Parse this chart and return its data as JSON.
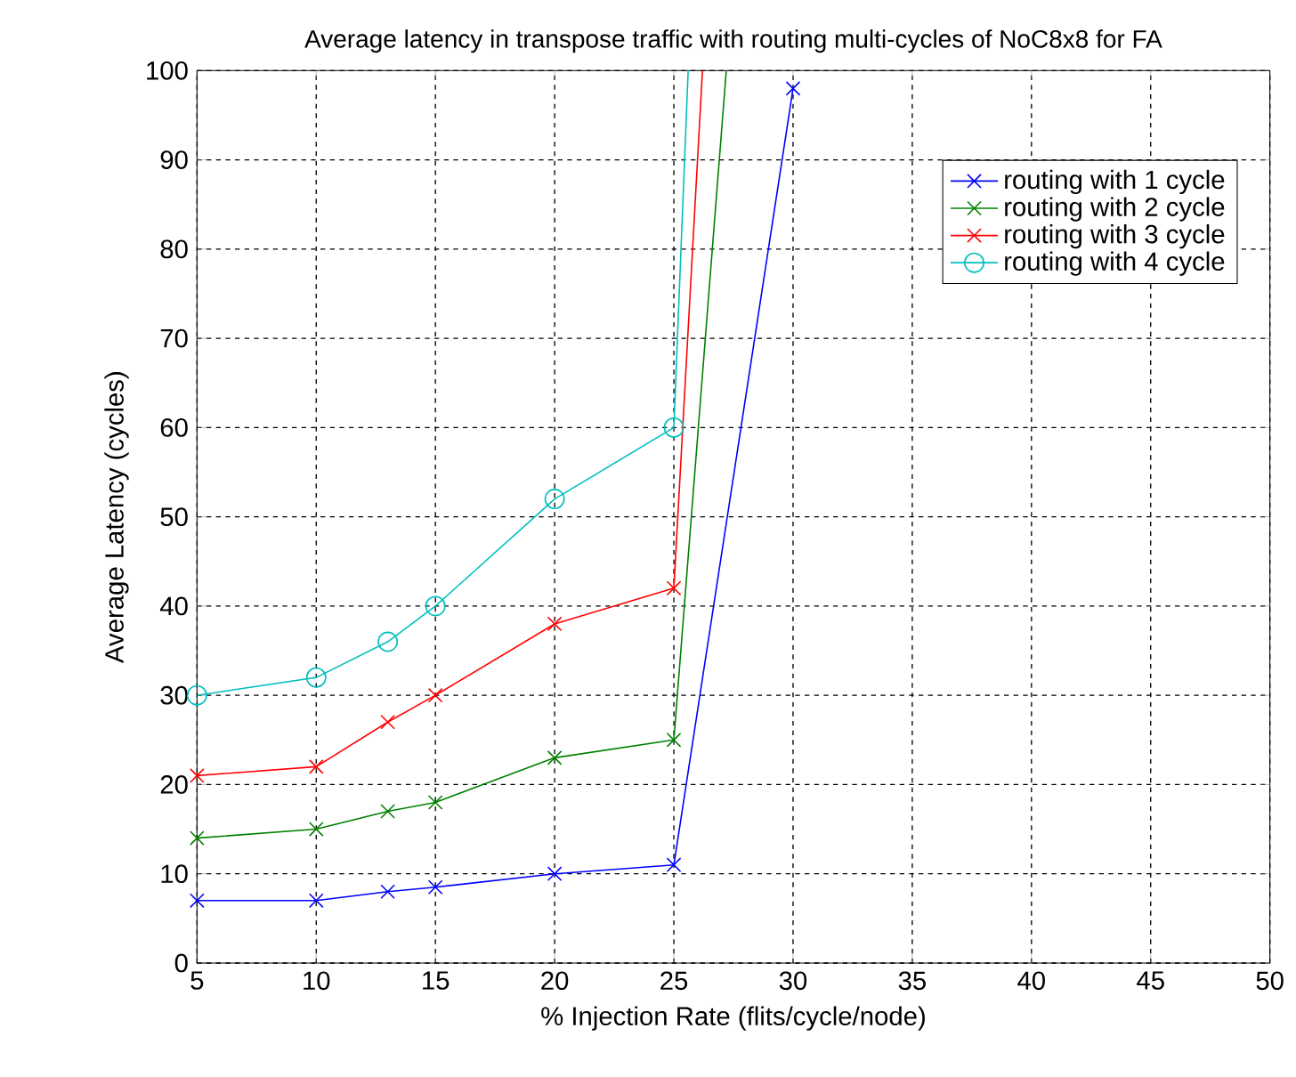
{
  "chart_data": {
    "type": "line",
    "title": "Average latency in transpose traffic with routing multi-cycles of NoC8x8 for FA",
    "xlabel": "% Injection Rate (flits/cycle/node)",
    "ylabel": "Average Latency (cycles)",
    "xlim": [
      5,
      50
    ],
    "ylim": [
      0,
      100
    ],
    "xticks": [
      5,
      10,
      15,
      20,
      25,
      30,
      35,
      40,
      45,
      50
    ],
    "yticks": [
      0,
      10,
      20,
      30,
      40,
      50,
      60,
      70,
      80,
      90,
      100
    ],
    "grid": true,
    "legend": "top right",
    "line_style": "solid",
    "series": [
      {
        "name": "routing with 1 cycle",
        "color": "#0000ff",
        "marker": "cross",
        "x": [
          5,
          10,
          13,
          15,
          20,
          25,
          30
        ],
        "values": [
          7,
          7,
          8,
          8.5,
          10,
          11,
          98
        ]
      },
      {
        "name": "routing with 2 cycle",
        "color": "#008000",
        "marker": "cross",
        "x": [
          5,
          10,
          13,
          15,
          20,
          25,
          27.2
        ],
        "values": [
          14,
          15,
          17,
          18,
          23,
          25,
          100
        ]
      },
      {
        "name": "routing with 3 cycle",
        "color": "#ff0000",
        "marker": "cross",
        "x": [
          5,
          10,
          13,
          15,
          20,
          25,
          26.2
        ],
        "values": [
          21,
          22,
          27,
          30,
          38,
          42,
          100
        ]
      },
      {
        "name": "routing with 4 cycle",
        "color": "#00bfbf",
        "marker": "circle",
        "x": [
          5,
          10,
          13,
          15,
          20,
          25,
          25.6
        ],
        "values": [
          30,
          32,
          36,
          40,
          52,
          60,
          100
        ]
      }
    ]
  }
}
